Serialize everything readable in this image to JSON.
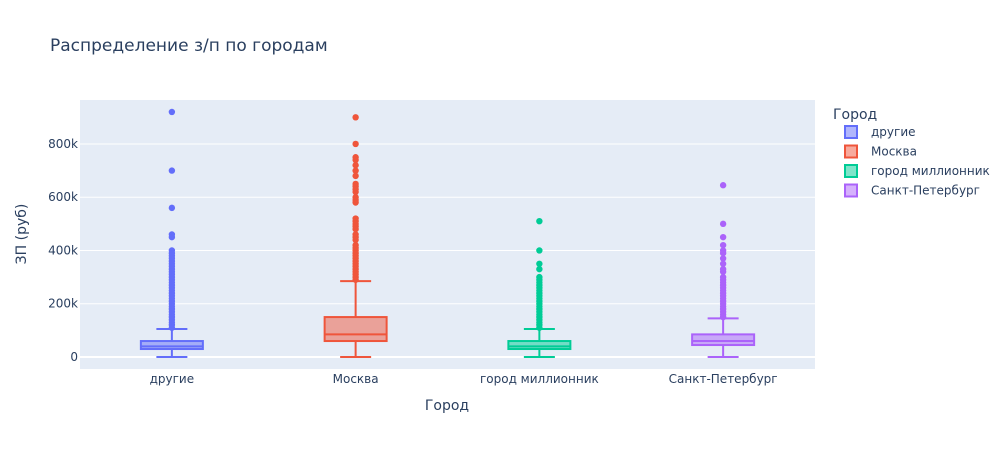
{
  "chart_data": {
    "type": "box",
    "title": "Распределение з/п по городам",
    "xlabel": "Город",
    "ylabel": "ЗП (руб)",
    "ylim": [
      -45000,
      965000
    ],
    "yticks": [
      0,
      200000,
      400000,
      600000,
      800000
    ],
    "ytick_labels": [
      "0",
      "200k",
      "400k",
      "600k",
      "800k"
    ],
    "grid": true,
    "legend": {
      "title": "Город",
      "placement": "right"
    },
    "categories": [
      "другие",
      "Москва",
      "город миллионник",
      "Санкт-Петербург"
    ],
    "series": [
      {
        "name": "другие",
        "color": "#636efa",
        "min": 0,
        "q1": 30000,
        "median": 40000,
        "q3": 60000,
        "upper_fence": 105000,
        "outliers": [
          920000,
          700000,
          560000,
          460000,
          450000,
          400000,
          390000,
          380000,
          370000,
          360000,
          350000,
          340000,
          330000,
          320000,
          310000,
          300000,
          290000,
          280000,
          270000,
          260000,
          250000,
          240000,
          230000,
          220000,
          210000,
          200000,
          190000,
          180000,
          170000,
          160000,
          150000,
          140000,
          130000,
          120000,
          110000
        ]
      },
      {
        "name": "Москва",
        "color": "#ef553b",
        "min": 0,
        "q1": 60000,
        "median": 85000,
        "q3": 150000,
        "upper_fence": 285000,
        "outliers": [
          900000,
          800000,
          750000,
          740000,
          720000,
          700000,
          680000,
          650000,
          640000,
          630000,
          620000,
          600000,
          590000,
          580000,
          520000,
          510000,
          500000,
          490000,
          480000,
          460000,
          450000,
          440000,
          420000,
          410000,
          400000,
          390000,
          380000,
          370000,
          360000,
          350000,
          340000,
          330000,
          320000,
          310000,
          300000,
          290000
        ]
      },
      {
        "name": "город миллионник",
        "color": "#00cc96",
        "min": 0,
        "q1": 30000,
        "median": 40000,
        "q3": 60000,
        "upper_fence": 105000,
        "outliers": [
          510000,
          400000,
          350000,
          330000,
          300000,
          290000,
          280000,
          270000,
          260000,
          250000,
          240000,
          230000,
          220000,
          210000,
          200000,
          190000,
          180000,
          170000,
          160000,
          150000,
          140000,
          130000,
          120000,
          110000
        ]
      },
      {
        "name": "Санкт-Петербург",
        "color": "#ab63fa",
        "min": 0,
        "q1": 45000,
        "median": 60000,
        "q3": 85000,
        "upper_fence": 145000,
        "outliers": [
          645000,
          500000,
          450000,
          420000,
          400000,
          390000,
          370000,
          350000,
          330000,
          320000,
          300000,
          290000,
          280000,
          270000,
          260000,
          250000,
          240000,
          230000,
          220000,
          210000,
          200000,
          190000,
          180000,
          170000,
          160000,
          150000
        ]
      }
    ]
  }
}
